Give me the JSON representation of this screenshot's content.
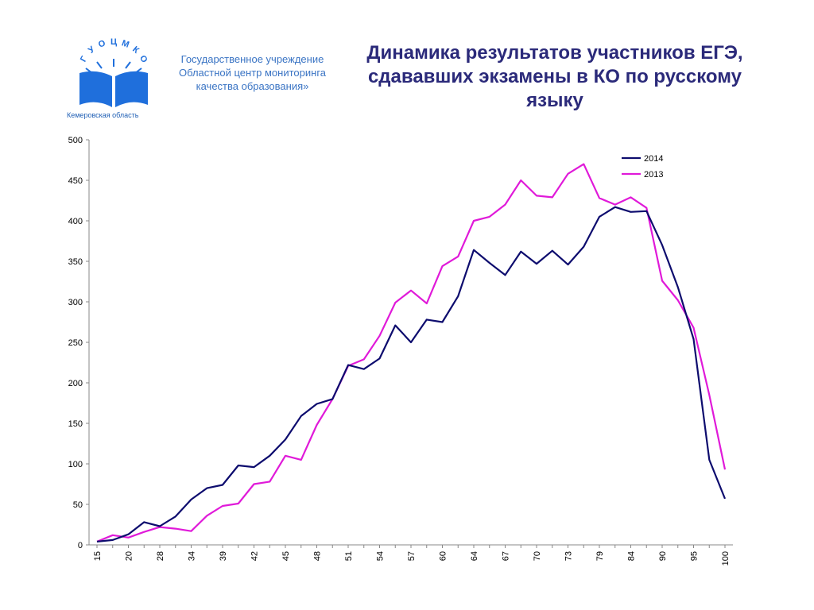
{
  "header": {
    "logo_arc_text": "ГУОЦМКО",
    "logo_caption": "Кемеровская область",
    "org_lines": [
      "Государственное учреждение",
      "Областной центр мониторинга",
      "качества образования»"
    ],
    "title_lines": [
      "Динамика результатов участников ЕГЭ,",
      "сдававших экзамены в КО по русскому",
      "языку"
    ]
  },
  "colors": {
    "series_2014": "#0d0c6e",
    "series_2013": "#e01ad9",
    "logo_blue": "#1f6fdc",
    "org_text": "#3a74c4",
    "title_text": "#2b2a7a"
  },
  "chart_data": {
    "type": "line",
    "xlabel": "",
    "ylabel": "",
    "ylim": [
      0,
      500
    ],
    "yticks": [
      0,
      50,
      100,
      150,
      200,
      250,
      300,
      350,
      400,
      450,
      500
    ],
    "x_tick_labels": [
      "15",
      "20",
      "28",
      "34",
      "39",
      "42",
      "45",
      "48",
      "51",
      "54",
      "57",
      "60",
      "64",
      "67",
      "70",
      "73",
      "79",
      "84",
      "90",
      "95",
      "100"
    ],
    "points_count": 41,
    "grid": false,
    "legend_position": "top-right",
    "series": [
      {
        "name": "2014",
        "values": [
          4,
          6,
          13,
          28,
          23,
          35,
          56,
          70,
          74,
          98,
          96,
          110,
          130,
          159,
          174,
          180,
          222,
          217,
          230,
          271,
          250,
          278,
          275,
          307,
          364,
          348,
          333,
          362,
          347,
          363,
          346,
          368,
          405,
          417,
          411,
          412,
          370,
          318,
          254,
          105,
          57
        ]
      },
      {
        "name": "2013",
        "values": [
          4,
          12,
          9,
          16,
          22,
          20,
          17,
          36,
          48,
          51,
          75,
          78,
          110,
          105,
          148,
          180,
          221,
          229,
          258,
          299,
          314,
          298,
          344,
          356,
          400,
          405,
          420,
          450,
          431,
          429,
          458,
          470,
          428,
          420,
          429,
          416,
          326,
          302,
          268,
          185,
          93
        ]
      }
    ]
  }
}
